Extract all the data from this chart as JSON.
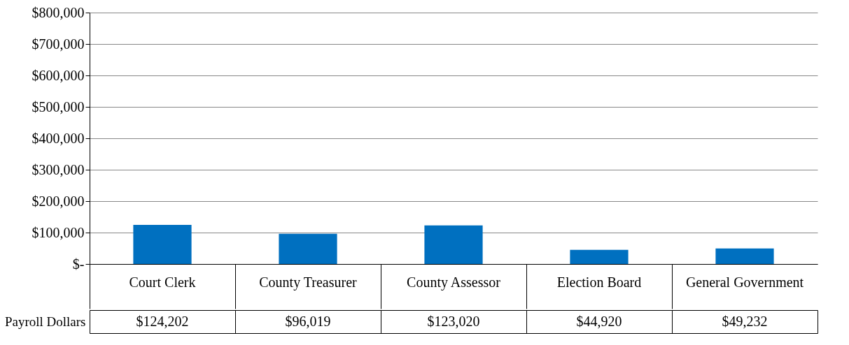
{
  "chart_data": {
    "type": "bar",
    "categories": [
      "Court Clerk",
      "County Treasurer",
      "County Assessor",
      "Election Board",
      "General Government"
    ],
    "series": [
      {
        "name": "Payroll Dollars",
        "color": "#0070c0",
        "values": [
          124202,
          96019,
          123020,
          44920,
          49232
        ],
        "value_labels": [
          "$124,202",
          "$96,019",
          "$123,020",
          "$44,920",
          "$49,232"
        ]
      }
    ],
    "ylim": [
      0,
      800000
    ],
    "yticks": [
      {
        "value": 0,
        "label": "$-"
      },
      {
        "value": 100000,
        "label": "$100,000"
      },
      {
        "value": 200000,
        "label": "$200,000"
      },
      {
        "value": 300000,
        "label": "$300,000"
      },
      {
        "value": 400000,
        "label": "$400,000"
      },
      {
        "value": 500000,
        "label": "$500,000"
      },
      {
        "value": 600000,
        "label": "$600,000"
      },
      {
        "value": 700000,
        "label": "$700,000"
      },
      {
        "value": 800000,
        "label": "$800,000"
      }
    ],
    "grid": "y"
  }
}
